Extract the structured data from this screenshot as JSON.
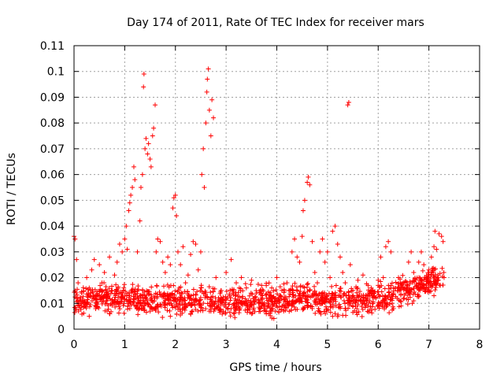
{
  "chart_data": {
    "type": "scatter",
    "title": "Day 174 of 2011, Rate Of TEC Index for receiver mars",
    "xlabel": "GPS time / hours",
    "ylabel": "ROTI / TECUs",
    "xlim": [
      0,
      8
    ],
    "ylim": [
      0,
      0.11
    ],
    "grid": true,
    "marker": "+",
    "color": "#ff0000",
    "x_ticks": [
      0,
      1,
      2,
      3,
      4,
      5,
      6,
      7,
      8
    ],
    "x_tick_labels": [
      "0",
      "1",
      "2",
      "3",
      "4",
      "5",
      "6",
      "7",
      "8"
    ],
    "y_ticks": [
      0,
      0.01,
      0.02,
      0.03,
      0.04,
      0.05,
      0.06,
      0.07,
      0.08,
      0.09,
      0.1,
      0.11
    ],
    "y_tick_labels": [
      "0",
      "0.01",
      "0.02",
      "0.03",
      "0.04",
      "0.05",
      "0.06",
      "0.07",
      "0.08",
      "0.09",
      "0.1",
      "0.11"
    ],
    "series": [
      {
        "name": "ROTI",
        "points": [
          [
            0.0,
            0.036
          ],
          [
            0.02,
            0.035
          ],
          [
            0.05,
            0.027
          ],
          [
            0.05,
            0.012
          ],
          [
            0.08,
            0.018
          ],
          [
            0.1,
            0.009
          ],
          [
            0.15,
            0.014
          ],
          [
            0.2,
            0.011
          ],
          [
            0.25,
            0.02
          ],
          [
            0.3,
            0.016
          ],
          [
            0.35,
            0.023
          ],
          [
            0.4,
            0.027
          ],
          [
            0.45,
            0.013
          ],
          [
            0.5,
            0.025
          ],
          [
            0.55,
            0.018
          ],
          [
            0.6,
            0.022
          ],
          [
            0.65,
            0.01
          ],
          [
            0.7,
            0.028
          ],
          [
            0.75,
            0.015
          ],
          [
            0.8,
            0.021
          ],
          [
            0.85,
            0.026
          ],
          [
            0.9,
            0.033
          ],
          [
            0.95,
            0.03
          ],
          [
            1.0,
            0.035
          ],
          [
            1.03,
            0.04
          ],
          [
            1.05,
            0.031
          ],
          [
            1.08,
            0.046
          ],
          [
            1.1,
            0.049
          ],
          [
            1.12,
            0.052
          ],
          [
            1.15,
            0.055
          ],
          [
            1.18,
            0.063
          ],
          [
            1.2,
            0.058
          ],
          [
            1.25,
            0.03
          ],
          [
            1.3,
            0.042
          ],
          [
            1.32,
            0.055
          ],
          [
            1.35,
            0.06
          ],
          [
            1.37,
            0.094
          ],
          [
            1.38,
            0.099
          ],
          [
            1.4,
            0.07
          ],
          [
            1.42,
            0.074
          ],
          [
            1.45,
            0.068
          ],
          [
            1.47,
            0.072
          ],
          [
            1.5,
            0.066
          ],
          [
            1.52,
            0.063
          ],
          [
            1.55,
            0.075
          ],
          [
            1.57,
            0.078
          ],
          [
            1.6,
            0.087
          ],
          [
            1.62,
            0.03
          ],
          [
            1.65,
            0.035
          ],
          [
            1.7,
            0.034
          ],
          [
            1.75,
            0.026
          ],
          [
            1.8,
            0.022
          ],
          [
            1.85,
            0.028
          ],
          [
            1.9,
            0.025
          ],
          [
            1.95,
            0.047
          ],
          [
            1.97,
            0.051
          ],
          [
            2.0,
            0.052
          ],
          [
            2.02,
            0.044
          ],
          [
            2.05,
            0.03
          ],
          [
            2.1,
            0.025
          ],
          [
            2.15,
            0.032
          ],
          [
            2.2,
            0.018
          ],
          [
            2.25,
            0.021
          ],
          [
            2.3,
            0.029
          ],
          [
            2.35,
            0.034
          ],
          [
            2.4,
            0.033
          ],
          [
            2.45,
            0.023
          ],
          [
            2.5,
            0.03
          ],
          [
            2.52,
            0.06
          ],
          [
            2.55,
            0.07
          ],
          [
            2.57,
            0.055
          ],
          [
            2.6,
            0.08
          ],
          [
            2.62,
            0.092
          ],
          [
            2.63,
            0.097
          ],
          [
            2.65,
            0.101
          ],
          [
            2.67,
            0.085
          ],
          [
            2.7,
            0.075
          ],
          [
            2.72,
            0.089
          ],
          [
            2.75,
            0.082
          ],
          [
            2.8,
            0.02
          ],
          [
            2.9,
            0.015
          ],
          [
            3.0,
            0.022
          ],
          [
            3.1,
            0.027
          ],
          [
            3.2,
            0.018
          ],
          [
            3.3,
            0.02
          ],
          [
            3.4,
            0.016
          ],
          [
            3.5,
            0.019
          ],
          [
            3.6,
            0.014
          ],
          [
            3.7,
            0.017
          ],
          [
            3.8,
            0.012
          ],
          [
            3.9,
            0.016
          ],
          [
            4.0,
            0.02
          ],
          [
            4.1,
            0.015
          ],
          [
            4.2,
            0.018
          ],
          [
            4.3,
            0.03
          ],
          [
            4.35,
            0.035
          ],
          [
            4.4,
            0.028
          ],
          [
            4.45,
            0.026
          ],
          [
            4.5,
            0.036
          ],
          [
            4.52,
            0.046
          ],
          [
            4.55,
            0.05
          ],
          [
            4.6,
            0.057
          ],
          [
            4.62,
            0.059
          ],
          [
            4.65,
            0.056
          ],
          [
            4.7,
            0.034
          ],
          [
            4.75,
            0.022
          ],
          [
            4.8,
            0.018
          ],
          [
            4.85,
            0.03
          ],
          [
            4.9,
            0.035
          ],
          [
            4.95,
            0.026
          ],
          [
            5.0,
            0.03
          ],
          [
            5.05,
            0.02
          ],
          [
            5.1,
            0.038
          ],
          [
            5.15,
            0.04
          ],
          [
            5.2,
            0.033
          ],
          [
            5.25,
            0.028
          ],
          [
            5.3,
            0.022
          ],
          [
            5.35,
            0.018
          ],
          [
            5.4,
            0.087
          ],
          [
            5.42,
            0.088
          ],
          [
            5.45,
            0.025
          ],
          [
            5.5,
            0.015
          ],
          [
            5.6,
            0.019
          ],
          [
            5.7,
            0.021
          ],
          [
            5.8,
            0.017
          ],
          [
            5.9,
            0.014
          ],
          [
            6.0,
            0.019
          ],
          [
            6.05,
            0.028
          ],
          [
            6.1,
            0.02
          ],
          [
            6.15,
            0.032
          ],
          [
            6.2,
            0.034
          ],
          [
            6.25,
            0.03
          ],
          [
            6.3,
            0.016
          ],
          [
            6.4,
            0.02
          ],
          [
            6.5,
            0.018
          ],
          [
            6.6,
            0.026
          ],
          [
            6.65,
            0.03
          ],
          [
            6.7,
            0.022
          ],
          [
            6.8,
            0.026
          ],
          [
            6.85,
            0.03
          ],
          [
            6.9,
            0.025
          ],
          [
            6.95,
            0.02
          ],
          [
            7.0,
            0.023
          ],
          [
            7.05,
            0.028
          ],
          [
            7.1,
            0.032
          ],
          [
            7.12,
            0.038
          ],
          [
            7.15,
            0.031
          ],
          [
            7.2,
            0.037
          ],
          [
            7.25,
            0.036
          ],
          [
            7.28,
            0.034
          ],
          [
            7.3,
            0.02
          ],
          [
            0.3,
            0.005
          ],
          [
            0.7,
            0.006
          ],
          [
            1.1,
            0.008
          ],
          [
            1.5,
            0.007
          ],
          [
            1.9,
            0.005
          ],
          [
            2.3,
            0.006
          ],
          [
            2.7,
            0.007
          ],
          [
            3.1,
            0.008
          ],
          [
            3.5,
            0.006
          ],
          [
            3.9,
            0.007
          ],
          [
            4.3,
            0.009
          ],
          [
            4.7,
            0.008
          ],
          [
            5.1,
            0.005
          ],
          [
            5.5,
            0.009
          ],
          [
            5.9,
            0.01
          ],
          [
            6.3,
            0.008
          ],
          [
            6.7,
            0.011
          ],
          [
            7.1,
            0.013
          ]
        ]
      }
    ],
    "dense_band": {
      "x_range": [
        0,
        7.3
      ],
      "baseline_y": [
        [
          0,
          0.011
        ],
        [
          0.5,
          0.012
        ],
        [
          1.0,
          0.012
        ],
        [
          1.5,
          0.011
        ],
        [
          2.0,
          0.011
        ],
        [
          2.5,
          0.011
        ],
        [
          3.0,
          0.01
        ],
        [
          3.5,
          0.011
        ],
        [
          4.0,
          0.011
        ],
        [
          4.5,
          0.012
        ],
        [
          5.0,
          0.011
        ],
        [
          5.5,
          0.011
        ],
        [
          6.0,
          0.012
        ],
        [
          6.5,
          0.015
        ],
        [
          7.0,
          0.018
        ],
        [
          7.3,
          0.02
        ]
      ],
      "spread": 0.005,
      "count": 1400
    }
  }
}
